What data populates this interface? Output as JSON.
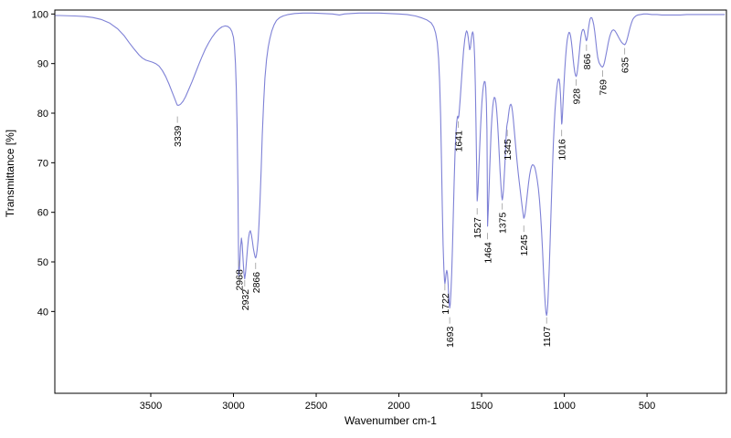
{
  "chart_data": {
    "type": "line",
    "title": "",
    "xlabel": "Wavenumber cm-1",
    "ylabel": "Transmittance [%]",
    "x_axis_reversed": true,
    "xlim": [
      4080,
      20
    ],
    "ylim": [
      23.5,
      100.8
    ],
    "x_ticks": [
      3500,
      3000,
      2500,
      2000,
      1500,
      1000,
      500
    ],
    "y_ticks": [
      40,
      50,
      60,
      70,
      80,
      90,
      100
    ],
    "grid": false,
    "line_color": "#7e81d6",
    "frame_color": "#000000",
    "connector_color": "#9a9a9a",
    "peak_labels": [
      {
        "wavenumber": 3339,
        "label_top_pct": 77.5
      },
      {
        "wavenumber": 2968,
        "label_top_pct": 48.5
      },
      {
        "wavenumber": 2932,
        "label_top_pct": 44.5
      },
      {
        "wavenumber": 2866,
        "label_top_pct": 48.0
      },
      {
        "wavenumber": 1722,
        "label_top_pct": 43.7
      },
      {
        "wavenumber": 1693,
        "label_top_pct": 37.0
      },
      {
        "wavenumber": 1641,
        "label_top_pct": 76.5
      },
      {
        "wavenumber": 1527,
        "label_top_pct": 59.0
      },
      {
        "wavenumber": 1464,
        "label_top_pct": 54.0
      },
      {
        "wavenumber": 1375,
        "label_top_pct": 60.0
      },
      {
        "wavenumber": 1345,
        "label_top_pct": 74.8
      },
      {
        "wavenumber": 1245,
        "label_top_pct": 55.5
      },
      {
        "wavenumber": 1107,
        "label_top_pct": 37.0
      },
      {
        "wavenumber": 1016,
        "label_top_pct": 74.8
      },
      {
        "wavenumber": 928,
        "label_top_pct": 85.0
      },
      {
        "wavenumber": 866,
        "label_top_pct": 92.0
      },
      {
        "wavenumber": 769,
        "label_top_pct": 86.8
      },
      {
        "wavenumber": 635,
        "label_top_pct": 91.3
      }
    ],
    "points": [
      [
        4078,
        99.7
      ],
      [
        4050,
        99.7
      ],
      [
        3960,
        99.6
      ],
      [
        3900,
        99.5
      ],
      [
        3850,
        99.3
      ],
      [
        3800,
        98.9
      ],
      [
        3750,
        98.2
      ],
      [
        3700,
        97.0
      ],
      [
        3660,
        95.6
      ],
      [
        3630,
        94.2
      ],
      [
        3600,
        92.9
      ],
      [
        3570,
        91.7
      ],
      [
        3550,
        91.1
      ],
      [
        3530,
        90.7
      ],
      [
        3510,
        90.5
      ],
      [
        3490,
        90.3
      ],
      [
        3470,
        90.0
      ],
      [
        3450,
        89.5
      ],
      [
        3430,
        88.6
      ],
      [
        3410,
        87.4
      ],
      [
        3390,
        85.9
      ],
      [
        3370,
        84.2
      ],
      [
        3355,
        82.9
      ],
      [
        3345,
        82.0
      ],
      [
        3339,
        81.6
      ],
      [
        3330,
        81.6
      ],
      [
        3320,
        81.8
      ],
      [
        3305,
        82.4
      ],
      [
        3290,
        83.3
      ],
      [
        3270,
        84.8
      ],
      [
        3250,
        86.4
      ],
      [
        3230,
        88.1
      ],
      [
        3210,
        89.8
      ],
      [
        3190,
        91.4
      ],
      [
        3170,
        92.9
      ],
      [
        3150,
        94.2
      ],
      [
        3130,
        95.3
      ],
      [
        3110,
        96.2
      ],
      [
        3090,
        96.9
      ],
      [
        3070,
        97.4
      ],
      [
        3050,
        97.6
      ],
      [
        3035,
        97.5
      ],
      [
        3020,
        97.1
      ],
      [
        3010,
        96.5
      ],
      [
        3000,
        95.3
      ],
      [
        2994,
        93.5
      ],
      [
        2988,
        90.0
      ],
      [
        2983,
        85.0
      ],
      [
        2978,
        77.0
      ],
      [
        2973,
        65.0
      ],
      [
        2970,
        54.0
      ],
      [
        2968,
        47.2
      ],
      [
        2965,
        48.0
      ],
      [
        2961,
        50.5
      ],
      [
        2957,
        53.0
      ],
      [
        2952,
        54.8
      ],
      [
        2947,
        53.5
      ],
      [
        2942,
        50.5
      ],
      [
        2937,
        47.8
      ],
      [
        2932,
        46.6
      ],
      [
        2927,
        47.8
      ],
      [
        2921,
        50.3
      ],
      [
        2915,
        52.8
      ],
      [
        2909,
        54.8
      ],
      [
        2903,
        56.0
      ],
      [
        2898,
        56.3
      ],
      [
        2892,
        55.5
      ],
      [
        2886,
        54.2
      ],
      [
        2880,
        52.8
      ],
      [
        2874,
        51.7
      ],
      [
        2869,
        51.0
      ],
      [
        2866,
        50.8
      ],
      [
        2862,
        51.2
      ],
      [
        2857,
        52.4
      ],
      [
        2851,
        54.5
      ],
      [
        2846,
        57.5
      ],
      [
        2840,
        62.0
      ],
      [
        2833,
        68.5
      ],
      [
        2826,
        75.5
      ],
      [
        2818,
        82.0
      ],
      [
        2810,
        87.0
      ],
      [
        2800,
        90.8
      ],
      [
        2790,
        93.3
      ],
      [
        2780,
        95.0
      ],
      [
        2768,
        96.6
      ],
      [
        2755,
        97.8
      ],
      [
        2740,
        98.7
      ],
      [
        2720,
        99.3
      ],
      [
        2700,
        99.6
      ],
      [
        2670,
        99.9
      ],
      [
        2630,
        100.1
      ],
      [
        2580,
        100.2
      ],
      [
        2520,
        100.2
      ],
      [
        2460,
        100.1
      ],
      [
        2400,
        100.0
      ],
      [
        2360,
        99.8
      ],
      [
        2330,
        100.0
      ],
      [
        2290,
        100.1
      ],
      [
        2240,
        100.2
      ],
      [
        2180,
        100.2
      ],
      [
        2120,
        100.2
      ],
      [
        2060,
        100.1
      ],
      [
        2000,
        100.0
      ],
      [
        1950,
        99.9
      ],
      [
        1900,
        99.6
      ],
      [
        1860,
        99.2
      ],
      [
        1830,
        98.8
      ],
      [
        1805,
        98.2
      ],
      [
        1790,
        97.4
      ],
      [
        1778,
        96.2
      ],
      [
        1768,
        94.2
      ],
      [
        1760,
        91.0
      ],
      [
        1754,
        86.5
      ],
      [
        1748,
        79.5
      ],
      [
        1743,
        71.0
      ],
      [
        1738,
        61.5
      ],
      [
        1733,
        53.5
      ],
      [
        1728,
        48.5
      ],
      [
        1724,
        46.2
      ],
      [
        1722,
        45.6
      ],
      [
        1719,
        46.2
      ],
      [
        1715,
        47.5
      ],
      [
        1711,
        48.3
      ],
      [
        1707,
        47.8
      ],
      [
        1703,
        46.0
      ],
      [
        1699,
        43.5
      ],
      [
        1695,
        41.3
      ],
      [
        1693,
        40.7
      ],
      [
        1690,
        41.3
      ],
      [
        1686,
        43.5
      ],
      [
        1681,
        47.5
      ],
      [
        1676,
        53.0
      ],
      [
        1671,
        59.5
      ],
      [
        1666,
        66.0
      ],
      [
        1661,
        71.5
      ],
      [
        1656,
        75.5
      ],
      [
        1651,
        78.0
      ],
      [
        1647,
        79.2
      ],
      [
        1644,
        79.4
      ],
      [
        1641,
        79.0
      ],
      [
        1638,
        79.4
      ],
      [
        1634,
        80.8
      ],
      [
        1629,
        83.0
      ],
      [
        1623,
        86.0
      ],
      [
        1616,
        89.5
      ],
      [
        1609,
        92.5
      ],
      [
        1602,
        94.8
      ],
      [
        1596,
        96.1
      ],
      [
        1591,
        96.6
      ],
      [
        1586,
        96.3
      ],
      [
        1581,
        95.3
      ],
      [
        1576,
        93.8
      ],
      [
        1572,
        92.8
      ],
      [
        1568,
        93.2
      ],
      [
        1563,
        94.8
      ],
      [
        1558,
        96.0
      ],
      [
        1554,
        96.4
      ],
      [
        1550,
        95.9
      ],
      [
        1546,
        94.3
      ],
      [
        1542,
        91.0
      ],
      [
        1538,
        85.5
      ],
      [
        1534,
        78.0
      ],
      [
        1531,
        70.5
      ],
      [
        1528,
        64.5
      ],
      [
        1527,
        62.3
      ],
      [
        1525,
        62.8
      ],
      [
        1522,
        64.5
      ],
      [
        1518,
        67.8
      ],
      [
        1513,
        71.8
      ],
      [
        1508,
        75.8
      ],
      [
        1503,
        79.3
      ],
      [
        1498,
        82.2
      ],
      [
        1493,
        84.3
      ],
      [
        1488,
        85.7
      ],
      [
        1483,
        86.4
      ],
      [
        1479,
        86.3
      ],
      [
        1475,
        85.2
      ],
      [
        1471,
        82.0
      ],
      [
        1468,
        76.5
      ],
      [
        1466,
        69.0
      ],
      [
        1464,
        57.2
      ],
      [
        1462,
        58.5
      ],
      [
        1459,
        61.0
      ],
      [
        1455,
        64.5
      ],
      [
        1451,
        68.5
      ],
      [
        1447,
        72.5
      ],
      [
        1443,
        76.0
      ],
      [
        1438,
        79.0
      ],
      [
        1433,
        81.2
      ],
      [
        1428,
        82.6
      ],
      [
        1423,
        83.2
      ],
      [
        1418,
        83.0
      ],
      [
        1413,
        82.0
      ],
      [
        1408,
        80.2
      ],
      [
        1403,
        77.8
      ],
      [
        1398,
        74.8
      ],
      [
        1393,
        71.5
      ],
      [
        1388,
        68.2
      ],
      [
        1383,
        65.2
      ],
      [
        1379,
        63.3
      ],
      [
        1375,
        62.5
      ],
      [
        1372,
        63.0
      ],
      [
        1368,
        64.5
      ],
      [
        1364,
        66.8
      ],
      [
        1359,
        69.8
      ],
      [
        1355,
        73.0
      ],
      [
        1351,
        75.8
      ],
      [
        1348,
        77.3
      ],
      [
        1345,
        77.9
      ],
      [
        1342,
        78.4
      ],
      [
        1338,
        79.5
      ],
      [
        1333,
        80.8
      ],
      [
        1328,
        81.6
      ],
      [
        1323,
        81.8
      ],
      [
        1318,
        81.4
      ],
      [
        1313,
        80.3
      ],
      [
        1308,
        78.7
      ],
      [
        1303,
        76.8
      ],
      [
        1297,
        74.5
      ],
      [
        1291,
        72.2
      ],
      [
        1285,
        70.0
      ],
      [
        1279,
        68.0
      ],
      [
        1273,
        66.2
      ],
      [
        1267,
        64.5
      ],
      [
        1261,
        62.9
      ],
      [
        1256,
        61.5
      ],
      [
        1251,
        60.2
      ],
      [
        1247,
        59.2
      ],
      [
        1245,
        58.8
      ],
      [
        1242,
        59.0
      ],
      [
        1238,
        59.6
      ],
      [
        1233,
        60.8
      ],
      [
        1228,
        62.3
      ],
      [
        1222,
        64.2
      ],
      [
        1216,
        66.0
      ],
      [
        1210,
        67.5
      ],
      [
        1204,
        68.6
      ],
      [
        1198,
        69.3
      ],
      [
        1192,
        69.6
      ],
      [
        1185,
        69.5
      ],
      [
        1178,
        69.0
      ],
      [
        1171,
        68.0
      ],
      [
        1164,
        66.6
      ],
      [
        1157,
        64.8
      ],
      [
        1150,
        62.5
      ],
      [
        1144,
        59.8
      ],
      [
        1138,
        56.5
      ],
      [
        1132,
        52.5
      ],
      [
        1126,
        48.0
      ],
      [
        1120,
        44.0
      ],
      [
        1115,
        41.2
      ],
      [
        1111,
        39.8
      ],
      [
        1107,
        39.2
      ],
      [
        1104,
        39.8
      ],
      [
        1100,
        41.5
      ],
      [
        1096,
        44.5
      ],
      [
        1091,
        48.8
      ],
      [
        1086,
        53.8
      ],
      [
        1081,
        59.2
      ],
      [
        1076,
        64.5
      ],
      [
        1071,
        69.5
      ],
      [
        1066,
        73.8
      ],
      [
        1061,
        77.5
      ],
      [
        1056,
        80.6
      ],
      [
        1051,
        83.0
      ],
      [
        1046,
        84.9
      ],
      [
        1041,
        86.2
      ],
      [
        1036,
        86.9
      ],
      [
        1031,
        86.8
      ],
      [
        1027,
        85.8
      ],
      [
        1023,
        83.8
      ],
      [
        1020,
        81.2
      ],
      [
        1017,
        78.5
      ],
      [
        1016,
        77.8
      ],
      [
        1014,
        78.2
      ],
      [
        1011,
        79.8
      ],
      [
        1007,
        82.5
      ],
      [
        1002,
        85.8
      ],
      [
        997,
        88.8
      ],
      [
        992,
        91.3
      ],
      [
        987,
        93.3
      ],
      [
        982,
        94.8
      ],
      [
        977,
        95.8
      ],
      [
        972,
        96.3
      ],
      [
        967,
        96.2
      ],
      [
        962,
        95.5
      ],
      [
        957,
        94.3
      ],
      [
        952,
        92.8
      ],
      [
        947,
        91.0
      ],
      [
        942,
        89.5
      ],
      [
        937,
        88.3
      ],
      [
        932,
        87.6
      ],
      [
        928,
        87.4
      ],
      [
        924,
        87.8
      ],
      [
        920,
        88.8
      ],
      [
        915,
        90.3
      ],
      [
        910,
        92.0
      ],
      [
        905,
        93.8
      ],
      [
        900,
        95.3
      ],
      [
        895,
        96.3
      ],
      [
        890,
        96.8
      ],
      [
        885,
        96.9
      ],
      [
        880,
        96.6
      ],
      [
        876,
        96.0
      ],
      [
        872,
        95.3
      ],
      [
        869,
        94.8
      ],
      [
        866,
        94.6
      ],
      [
        863,
        94.9
      ],
      [
        859,
        95.7
      ],
      [
        855,
        96.8
      ],
      [
        851,
        97.8
      ],
      [
        847,
        98.6
      ],
      [
        843,
        99.1
      ],
      [
        838,
        99.3
      ],
      [
        833,
        99.2
      ],
      [
        828,
        98.7
      ],
      [
        822,
        97.8
      ],
      [
        816,
        96.4
      ],
      [
        810,
        94.6
      ],
      [
        804,
        92.7
      ],
      [
        798,
        91.2
      ],
      [
        790,
        90.2
      ],
      [
        782,
        89.7
      ],
      [
        775,
        89.4
      ],
      [
        769,
        89.3
      ],
      [
        763,
        89.6
      ],
      [
        757,
        90.3
      ],
      [
        750,
        91.4
      ],
      [
        742,
        92.8
      ],
      [
        734,
        94.2
      ],
      [
        726,
        95.4
      ],
      [
        718,
        96.2
      ],
      [
        710,
        96.7
      ],
      [
        702,
        96.8
      ],
      [
        694,
        96.6
      ],
      [
        686,
        96.2
      ],
      [
        678,
        95.7
      ],
      [
        670,
        95.2
      ],
      [
        662,
        94.7
      ],
      [
        654,
        94.3
      ],
      [
        646,
        94.0
      ],
      [
        640,
        93.9
      ],
      [
        635,
        93.8
      ],
      [
        630,
        94.0
      ],
      [
        624,
        94.5
      ],
      [
        617,
        95.3
      ],
      [
        610,
        96.3
      ],
      [
        602,
        97.3
      ],
      [
        594,
        98.2
      ],
      [
        586,
        98.9
      ],
      [
        578,
        99.3
      ],
      [
        568,
        99.6
      ],
      [
        556,
        99.8
      ],
      [
        540,
        99.9
      ],
      [
        520,
        100.0
      ],
      [
        500,
        100.0
      ],
      [
        470,
        99.9
      ],
      [
        440,
        99.9
      ],
      [
        410,
        99.8
      ],
      [
        380,
        99.8
      ],
      [
        340,
        99.8
      ],
      [
        300,
        99.8
      ],
      [
        260,
        99.9
      ],
      [
        220,
        99.9
      ],
      [
        180,
        99.9
      ],
      [
        140,
        99.9
      ],
      [
        100,
        99.9
      ],
      [
        60,
        99.9
      ],
      [
        30,
        99.9
      ]
    ]
  }
}
